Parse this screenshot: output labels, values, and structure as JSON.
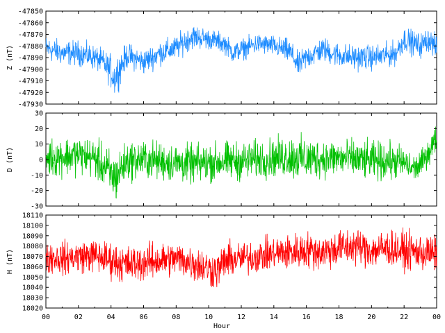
{
  "chart_data": [
    {
      "type": "line",
      "ylabel": "Z (nT)",
      "ylim": [
        -47930,
        -47850
      ],
      "yticks": [
        -47850,
        -47860,
        -47870,
        -47880,
        -47890,
        -47900,
        -47910,
        -47920,
        -47930
      ],
      "xlim": [
        0,
        24
      ],
      "grid": false,
      "series": [
        {
          "color": "#1e8cff",
          "x": [
            0,
            1,
            2,
            3,
            3.5,
            4,
            4.2,
            4.5,
            5,
            6,
            7,
            8,
            8.5,
            9,
            10,
            11,
            11.5,
            12,
            13,
            14,
            15,
            15.5,
            16,
            17,
            18,
            19,
            20,
            21,
            21.5,
            22,
            23,
            23.5,
            24
          ],
          "values": [
            -47882,
            -47886,
            -47886,
            -47890,
            -47894,
            -47902,
            -47908,
            -47900,
            -47888,
            -47894,
            -47886,
            -47882,
            -47876,
            -47872,
            -47874,
            -47878,
            -47886,
            -47883,
            -47878,
            -47880,
            -47885,
            -47897,
            -47890,
            -47883,
            -47888,
            -47890,
            -47890,
            -47888,
            -47886,
            -47874,
            -47880,
            -47874,
            -47882
          ],
          "spread": [
            6,
            6,
            6,
            6,
            6,
            8,
            9,
            8,
            6,
            6,
            6,
            6,
            6,
            6,
            5,
            5,
            5,
            5,
            5,
            5,
            6,
            6,
            6,
            6,
            6,
            6,
            6,
            6,
            6,
            6,
            6,
            6,
            6
          ]
        }
      ]
    },
    {
      "type": "line",
      "ylabel": "D (nT)",
      "ylim": [
        -30,
        30
      ],
      "yticks": [
        30,
        20,
        10,
        0,
        -10,
        -20,
        -30
      ],
      "xlim": [
        0,
        24
      ],
      "grid": false,
      "series": [
        {
          "color": "#00c000",
          "x": [
            0,
            1,
            2,
            3,
            3.5,
            4,
            4.3,
            4.6,
            5,
            6,
            7,
            8,
            9,
            10,
            11,
            12,
            13,
            14,
            15,
            16,
            17,
            18,
            19,
            20,
            21,
            22,
            22.5,
            23,
            23.5,
            24
          ],
          "values": [
            1,
            2,
            3,
            1,
            -4,
            -10,
            -12,
            -6,
            -1,
            0,
            -1,
            -2,
            -3,
            -2,
            -1,
            -1,
            0,
            1,
            2,
            0,
            1,
            1,
            0,
            -1,
            -1,
            -2,
            -6,
            -4,
            5,
            14
          ],
          "spread": [
            7,
            7,
            7,
            7,
            8,
            9,
            9,
            8,
            7,
            7,
            7,
            7,
            7,
            7,
            7,
            7,
            7,
            7,
            8,
            8,
            7,
            7,
            7,
            7,
            7,
            6,
            5,
            5,
            5,
            5
          ]
        }
      ]
    },
    {
      "type": "line",
      "ylabel": "H (nT)",
      "xlabel": "Hour",
      "ylim": [
        18020,
        18110
      ],
      "yticks": [
        18110,
        18100,
        18090,
        18080,
        18070,
        18060,
        18050,
        18040,
        18030,
        18020
      ],
      "xlim": [
        0,
        24
      ],
      "xticks": [
        "00",
        "02",
        "04",
        "06",
        "08",
        "10",
        "12",
        "14",
        "16",
        "18",
        "20",
        "22",
        "00"
      ],
      "grid": false,
      "series": [
        {
          "color": "#ff0000",
          "x": [
            0,
            1,
            2,
            3,
            4,
            5,
            6,
            7,
            8,
            9,
            10,
            10.5,
            11,
            12,
            13,
            14,
            15,
            16,
            17,
            18,
            19,
            20,
            21,
            22,
            23,
            24
          ],
          "values": [
            18070,
            18068,
            18070,
            18071,
            18066,
            18062,
            18064,
            18066,
            18068,
            18064,
            18058,
            18056,
            18066,
            18068,
            18070,
            18073,
            18074,
            18076,
            18074,
            18078,
            18080,
            18076,
            18078,
            18075,
            18074,
            18072
          ],
          "spread": [
            9,
            9,
            9,
            9,
            10,
            10,
            10,
            10,
            9,
            10,
            10,
            10,
            10,
            9,
            9,
            9,
            10,
            10,
            10,
            10,
            10,
            10,
            10,
            10,
            10,
            10
          ]
        }
      ]
    }
  ]
}
